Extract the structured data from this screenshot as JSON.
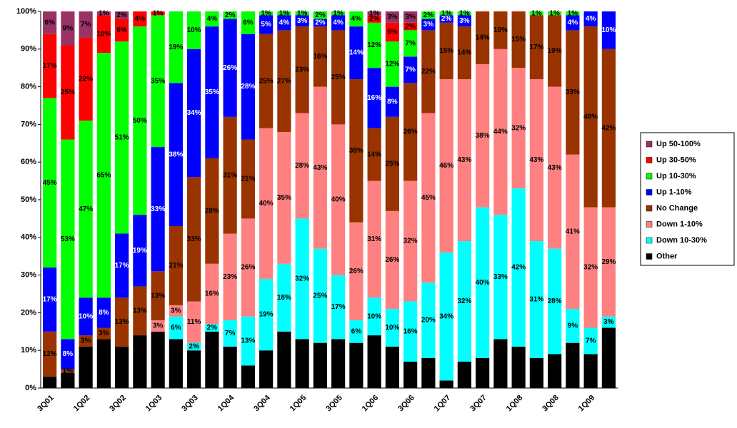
{
  "chart_data": {
    "type": "stacked_bar",
    "categories": [
      "3Q01",
      null,
      "1Q02",
      null,
      "3Q02",
      null,
      "1Q03",
      null,
      "3Q03",
      null,
      "1Q04",
      null,
      "3Q04",
      null,
      "1Q05",
      null,
      "3Q05",
      null,
      "1Q06",
      null,
      "3Q06",
      null,
      "1Q07",
      null,
      "3Q07",
      null,
      "1Q08",
      null,
      "3Q08",
      null,
      "1Q09",
      null
    ],
    "ylim": [
      0,
      100
    ],
    "yticks": [
      {
        "value": 0,
        "label": "0%"
      },
      {
        "value": 10,
        "label": "10%"
      },
      {
        "value": 20,
        "label": "20%"
      },
      {
        "value": 30,
        "label": "30%"
      },
      {
        "value": 40,
        "label": "40%"
      },
      {
        "value": 50,
        "label": "50%"
      },
      {
        "value": 60,
        "label": "60%"
      },
      {
        "value": 70,
        "label": "70%"
      },
      {
        "value": 80,
        "label": "80%"
      },
      {
        "value": 90,
        "label": "90%"
      },
      {
        "value": 100,
        "label": "100%"
      }
    ],
    "grid": false,
    "legend": "right",
    "series": [
      {
        "name": "Other",
        "color": "#000000",
        "values": [
          3,
          4,
          11,
          13,
          11,
          14,
          15,
          13,
          10,
          15,
          11,
          6,
          10,
          15,
          13,
          12,
          13,
          12,
          14,
          11,
          7,
          8,
          2,
          7,
          8,
          13,
          11,
          8,
          9,
          12,
          9,
          16
        ]
      },
      {
        "name": "Down 10-30%",
        "color": "#00ffff",
        "values": [
          0,
          0,
          0,
          0,
          0,
          0,
          0,
          6,
          2,
          2,
          7,
          13,
          19,
          18,
          32,
          25,
          17,
          6,
          10,
          10,
          16,
          20,
          34,
          32,
          40,
          33,
          42,
          31,
          28,
          9,
          7,
          3
        ],
        "value_labels": [
          null,
          null,
          null,
          null,
          null,
          null,
          null,
          "6%",
          "2%",
          "2%",
          "7%",
          "13%",
          "19%",
          "18%",
          "32%",
          "25%",
          "17%",
          "6%",
          "10%",
          "10%",
          "16%",
          "20%",
          "34%",
          "32%",
          "40%",
          "33%",
          "42%",
          "31%",
          "28%",
          "9%",
          "7%",
          "3%"
        ]
      },
      {
        "name": "Down 1-10%",
        "color": "#ff8080",
        "values": [
          0,
          0,
          0,
          0,
          0,
          0,
          3,
          3,
          11,
          16,
          23,
          26,
          40,
          35,
          28,
          43,
          40,
          26,
          31,
          26,
          32,
          45,
          46,
          43,
          38,
          44,
          32,
          43,
          43,
          41,
          32,
          29
        ],
        "value_labels": [
          null,
          null,
          null,
          null,
          null,
          null,
          "3%",
          "3%",
          "11%",
          "16%",
          "23%",
          "26%",
          "40%",
          "35%",
          "28%",
          "43%",
          "40%",
          "26%",
          "31%",
          "26%",
          "32%",
          "45%",
          "46%",
          "43%",
          "38%",
          "44%",
          "32%",
          "43%",
          "43%",
          "41%",
          "32%",
          "29%"
        ]
      },
      {
        "name": "No Change",
        "color": "#993300",
        "values": [
          12,
          1,
          3,
          3,
          13,
          13,
          13,
          21,
          33,
          28,
          31,
          21,
          25,
          27,
          23,
          16,
          25,
          38,
          14,
          25,
          26,
          22,
          15,
          14,
          14,
          10,
          15,
          17,
          19,
          33,
          48,
          42
        ],
        "value_labels": [
          "12%",
          "1%",
          "3%",
          "3%",
          "13%",
          "13%",
          "13%",
          "21%",
          "33%",
          "28%",
          "31%",
          "21%",
          "25%",
          "27%",
          "23%",
          "16%",
          "25%",
          "38%",
          "14%",
          "25%",
          "26%",
          "22%",
          "15%",
          "14%",
          "14%",
          "10%",
          "15%",
          "17%",
          "19%",
          "33%",
          "48%",
          "42%"
        ]
      },
      {
        "name": "Up 1-10%",
        "color": "#0000ff",
        "values": [
          17,
          8,
          10,
          8,
          17,
          19,
          33,
          38,
          34,
          35,
          26,
          28,
          5,
          4,
          3,
          2,
          4,
          14,
          16,
          8,
          7,
          3,
          2,
          3,
          0,
          0,
          0,
          0,
          0,
          4,
          4,
          10
        ],
        "value_labels": [
          "17%",
          "8%",
          "10%",
          "8%",
          "17%",
          "19%",
          "33%",
          "38%",
          "34%",
          "35%",
          "26%",
          "28%",
          "5%",
          "4%",
          "3%",
          "2%",
          "4%",
          "14%",
          "16%",
          "8%",
          "7%",
          "3%",
          "2%",
          "3%",
          null,
          null,
          null,
          null,
          null,
          "4%",
          "4%",
          "10%"
        ]
      },
      {
        "name": "Up 10-30%",
        "color": "#00ff00",
        "values": [
          45,
          53,
          47,
          65,
          51,
          50,
          35,
          19,
          10,
          4,
          2,
          6,
          1,
          1,
          1,
          2,
          1,
          4,
          12,
          12,
          7,
          2,
          1,
          1,
          0,
          0,
          0,
          1,
          1,
          1,
          0,
          0
        ],
        "value_labels": [
          "45%",
          "53%",
          "47%",
          "65%",
          "51%",
          "50%",
          "35%",
          "19%",
          "10%",
          "4%",
          "2%",
          "6%",
          "1%",
          "1%",
          "1%",
          "2%",
          "1%",
          "4%",
          "12%",
          "12%",
          "7%",
          "2%",
          "1%",
          "1%",
          null,
          null,
          null,
          "1%",
          "1%",
          "1%",
          null,
          null
        ]
      },
      {
        "name": "Up 30-50%",
        "color": "#ff0000",
        "values": [
          17,
          25,
          22,
          10,
          6,
          4,
          1,
          0,
          0,
          0,
          0,
          0,
          0,
          0,
          0,
          0,
          0,
          0,
          2,
          5,
          2,
          0,
          0,
          0,
          0,
          0,
          0,
          0,
          0,
          0,
          0,
          0
        ],
        "value_labels": [
          "17%",
          "25%",
          "22%",
          "10%",
          "6%",
          "4%",
          "1%",
          null,
          null,
          null,
          null,
          null,
          null,
          null,
          null,
          null,
          null,
          null,
          "2%",
          "5%",
          "2%",
          null,
          null,
          null,
          null,
          null,
          null,
          null,
          null,
          null,
          null,
          null
        ]
      },
      {
        "name": "Up 50-100%",
        "color": "#993366",
        "values": [
          6,
          9,
          7,
          1,
          2,
          0,
          0,
          0,
          0,
          0,
          0,
          0,
          0,
          0,
          0,
          0,
          0,
          0,
          1,
          3,
          3,
          0,
          0,
          0,
          0,
          0,
          0,
          0,
          0,
          0,
          0,
          0
        ],
        "value_labels": [
          "6%",
          "9%",
          "7%",
          "1%",
          "2%",
          null,
          null,
          null,
          null,
          null,
          null,
          null,
          null,
          null,
          null,
          null,
          null,
          null,
          "1%",
          "3%",
          "3%",
          null,
          null,
          null,
          null,
          null,
          null,
          null,
          null,
          null,
          null,
          null
        ]
      }
    ]
  }
}
